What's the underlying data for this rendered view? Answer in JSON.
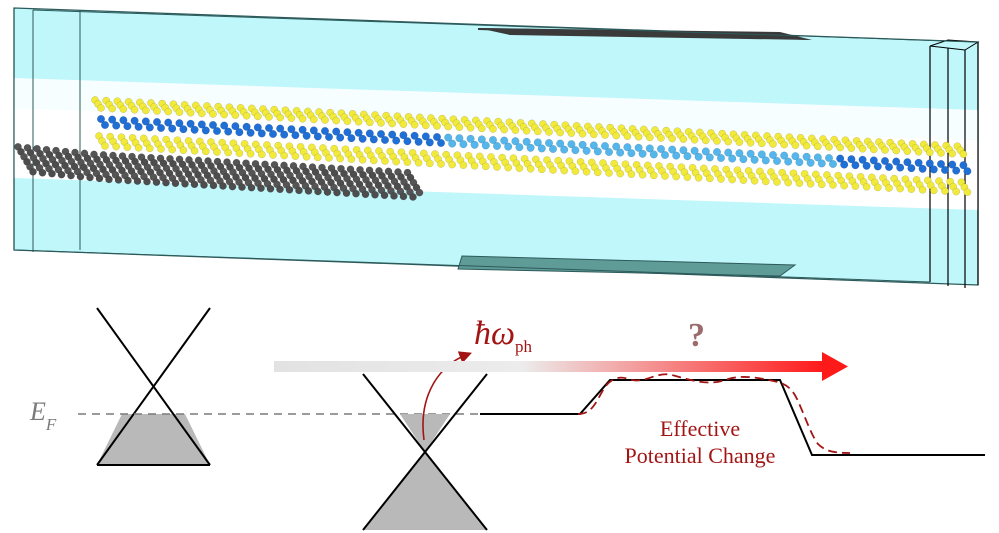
{
  "figure": {
    "device": {
      "slab_color": "#bff7fb",
      "edge_color": "#2d5a5a",
      "top_contact_color": "#3a3a3a",
      "bottom_contact_color": "#5f9c98",
      "graphene_color": "#555555",
      "chalcogen_color": "#f2ea3a",
      "metal_dark_color": "#1f6fd6",
      "metal_light_color": "#55b6ec"
    },
    "band_diagram": {
      "fermi_label_main": "E",
      "fermi_label_sub": "F",
      "phonon_label_main": "ħω",
      "phonon_label_sub": "ph",
      "question_mark": "?",
      "effective_label_line1": "Effective",
      "effective_label_line2": "Potential Change",
      "arrow_gradient": [
        "#e2e2e2",
        "#ff1a1a"
      ],
      "text_red": "#a31515",
      "question_color": "#9c6b6b",
      "cone_fill": "#b9b9b9",
      "fermi_line_color": "#7a7a7a",
      "dashed_profile_color": "#a31515"
    }
  }
}
